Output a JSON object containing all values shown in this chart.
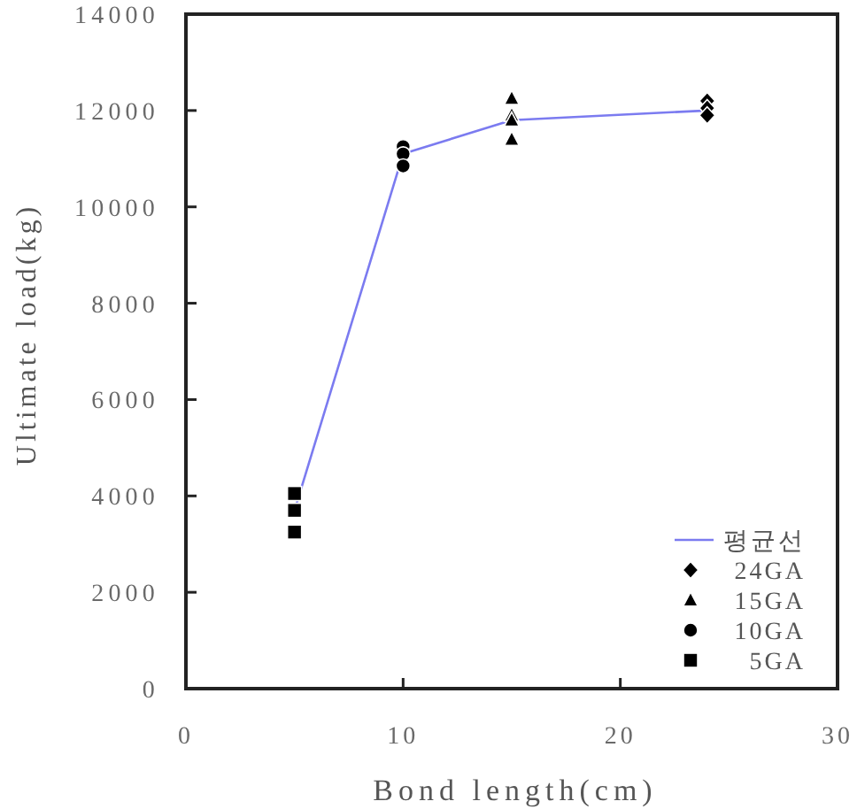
{
  "chart_data": {
    "type": "scatter",
    "xlabel": "Bond length(cm)",
    "ylabel": "Ultimate load(kg)",
    "xlim": [
      0,
      30
    ],
    "xticks": [
      0,
      10,
      20,
      30
    ],
    "ylim": [
      0,
      14000
    ],
    "yticks": [
      0,
      2000,
      4000,
      6000,
      8000,
      10000,
      12000,
      14000
    ],
    "legend": "bottom right",
    "series": [
      {
        "name": "평균선",
        "type": "line",
        "color": "#7b7bf0",
        "marker": "none",
        "x": [
          5,
          10,
          15,
          24
        ],
        "values": [
          3700,
          11100,
          11800,
          12000
        ]
      },
      {
        "name": "24GA",
        "color": "#000000",
        "marker": "diamond",
        "x": [
          24,
          24,
          24
        ],
        "values": [
          12200,
          12050,
          11900
        ]
      },
      {
        "name": "15GA",
        "color": "#000000",
        "marker": "triangle",
        "x": [
          15,
          15,
          15,
          15
        ],
        "values": [
          12250,
          11900,
          11800,
          11400
        ]
      },
      {
        "name": "10GA",
        "color": "#000000",
        "marker": "circle",
        "x": [
          10,
          10,
          10
        ],
        "values": [
          11250,
          11100,
          10850
        ]
      },
      {
        "name": "5GA",
        "color": "#000000",
        "marker": "square",
        "x": [
          5,
          5,
          5
        ],
        "values": [
          4050,
          3700,
          3250
        ]
      }
    ]
  }
}
